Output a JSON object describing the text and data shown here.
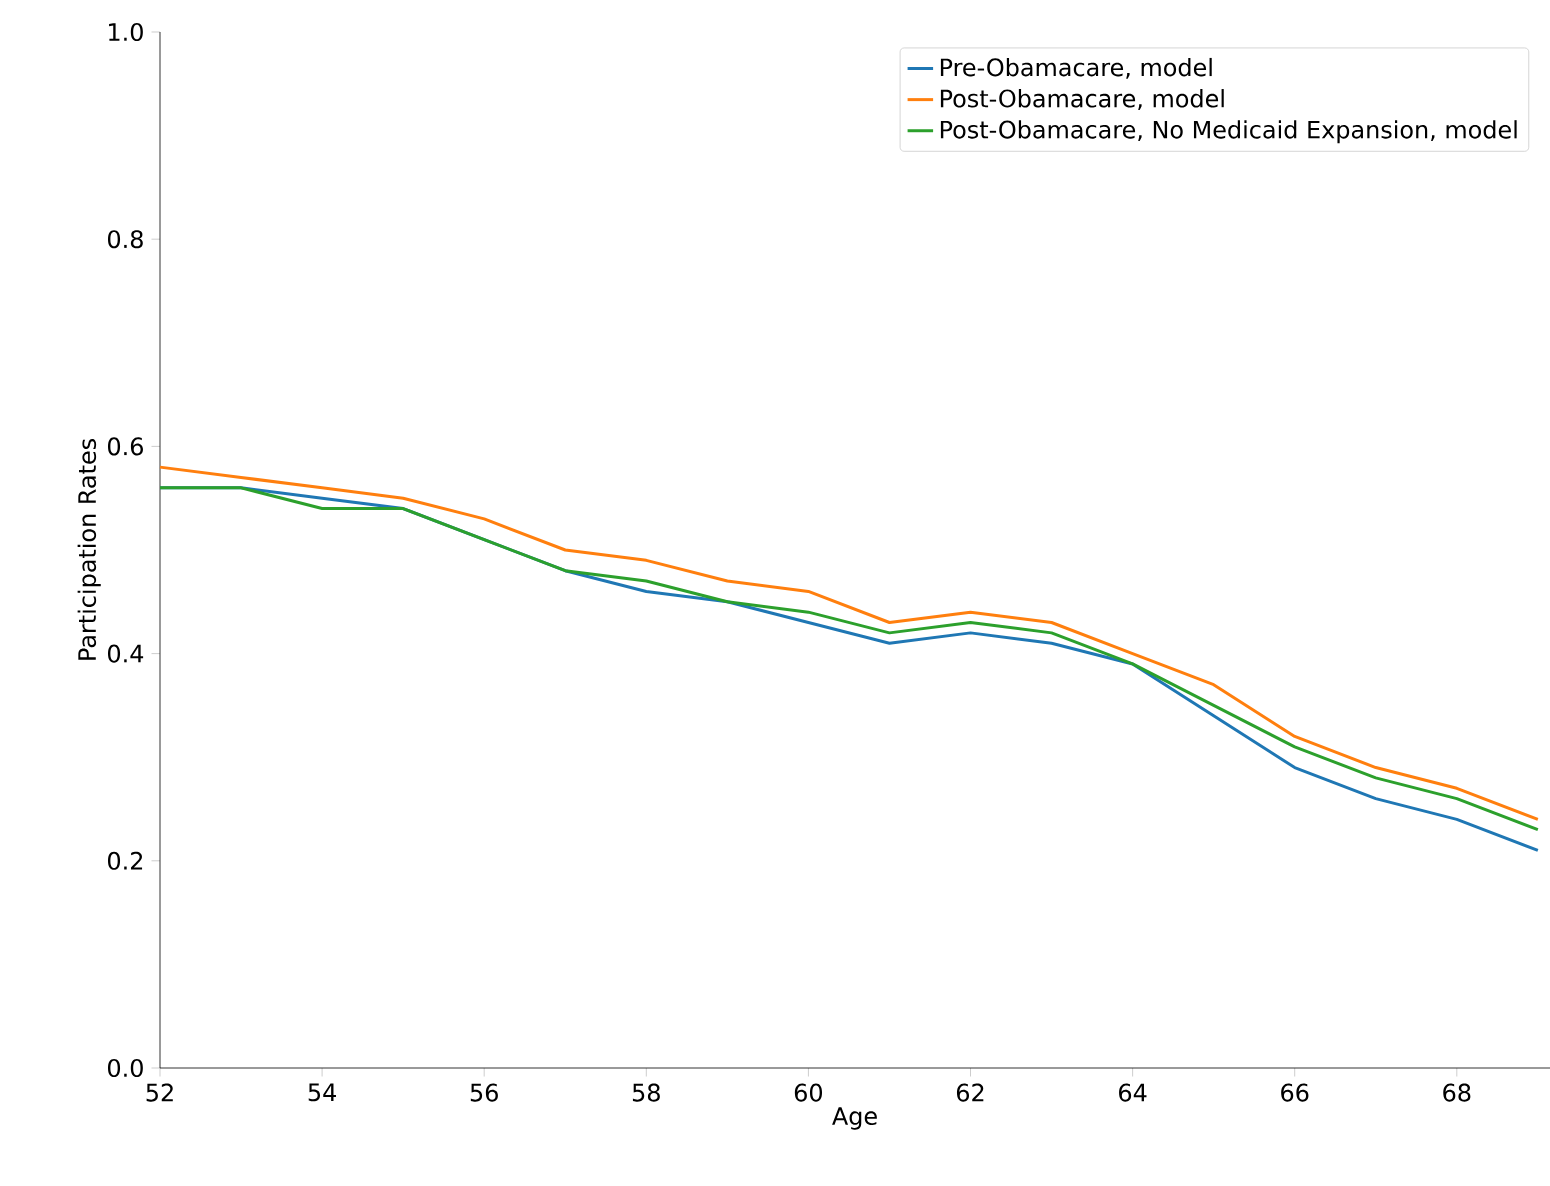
{
  "chart_data": {
    "type": "line",
    "xlabel": "Age",
    "ylabel": "Participation Rates",
    "x": [
      52,
      53,
      54,
      55,
      56,
      57,
      58,
      59,
      60,
      61,
      62,
      63,
      64,
      65,
      66,
      67,
      68,
      69
    ],
    "xlim": [
      52,
      69.15
    ],
    "xticks": [
      52,
      54,
      56,
      58,
      60,
      62,
      64,
      66,
      68
    ],
    "ylim": [
      0,
      1
    ],
    "yticks": [
      {
        "value": 0,
        "label": "0.0"
      },
      {
        "value": 0.2,
        "label": "0.2"
      },
      {
        "value": 0.4,
        "label": "0.4"
      },
      {
        "value": 0.6,
        "label": "0.6"
      },
      {
        "value": 0.8,
        "label": "0.8"
      },
      {
        "value": 1,
        "label": "1.0"
      }
    ],
    "legend": "top right",
    "grid": false,
    "marker": "none",
    "line_style": "solid",
    "series": [
      {
        "name": "Pre-Obamacare, model",
        "color": "#1f77b4",
        "values": [
          0.56,
          0.56,
          0.55,
          0.54,
          0.51,
          0.48,
          0.46,
          0.45,
          0.43,
          0.41,
          0.42,
          0.41,
          0.39,
          0.34,
          0.29,
          0.26,
          0.24,
          0.21
        ]
      },
      {
        "name": "Post-Obamacare, model",
        "color": "#ff7f0e",
        "values": [
          0.58,
          0.57,
          0.56,
          0.55,
          0.53,
          0.5,
          0.49,
          0.47,
          0.46,
          0.43,
          0.44,
          0.43,
          0.4,
          0.37,
          0.32,
          0.29,
          0.27,
          0.24
        ]
      },
      {
        "name": "Post-Obamacare, No Medicaid Expansion, model",
        "color": "#2ca02c",
        "values": [
          0.56,
          0.56,
          0.54,
          0.54,
          0.51,
          0.48,
          0.47,
          0.45,
          0.44,
          0.42,
          0.43,
          0.42,
          0.39,
          0.35,
          0.31,
          0.28,
          0.26,
          0.23
        ]
      }
    ]
  }
}
